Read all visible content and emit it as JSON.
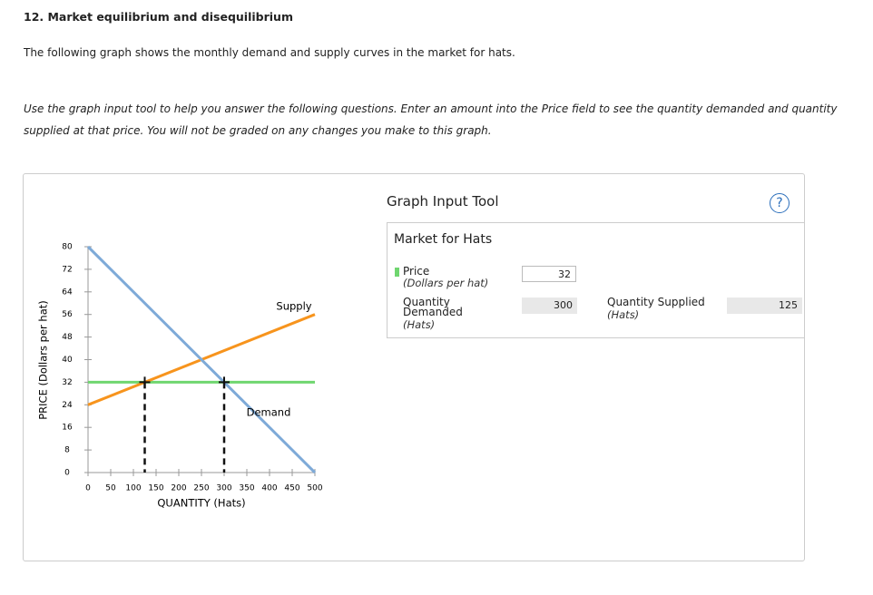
{
  "question": {
    "title": "12. Market equilibrium and disequilibrium",
    "intro": "The following graph shows the monthly demand and supply curves in the market for hats.",
    "instructions": "Use the graph input tool to help you answer the following questions. Enter an amount into the Price field to see the quantity demanded and quantity supplied at that price. You will not be graded on any changes you make to this graph."
  },
  "tool": {
    "title": "Graph Input Tool",
    "help": "?",
    "panel_title": "Market for Hats",
    "fields": [
      {
        "label": "Price",
        "unit": "(Dollars per hat)",
        "value": 32,
        "color": "#6fd66f"
      },
      {
        "label": "Quantity Demanded",
        "unit": "(Hats)",
        "value": 300
      },
      {
        "label": "Quantity Supplied",
        "unit": "(Hats)",
        "value": 125
      }
    ]
  },
  "chart_data": {
    "type": "line",
    "x_label": "QUANTITY (Hats)",
    "y_label": "PRICE (Dollars per hat)",
    "xlim": [
      0,
      500
    ],
    "xticks": [
      0,
      50,
      100,
      150,
      200,
      250,
      300,
      350,
      400,
      450,
      500
    ],
    "ylim": [
      0,
      80
    ],
    "yticks": [
      0,
      8,
      16,
      24,
      32,
      40,
      48,
      56,
      64,
      72,
      80
    ],
    "grid": false,
    "series": [
      {
        "name": "Supply",
        "color": "#f7941d",
        "x": [
          0,
          500
        ],
        "values": [
          24,
          56
        ]
      },
      {
        "name": "Demand",
        "color": "#7eaad8",
        "x": [
          0,
          500
        ],
        "values": [
          80,
          0
        ]
      }
    ]
  }
}
